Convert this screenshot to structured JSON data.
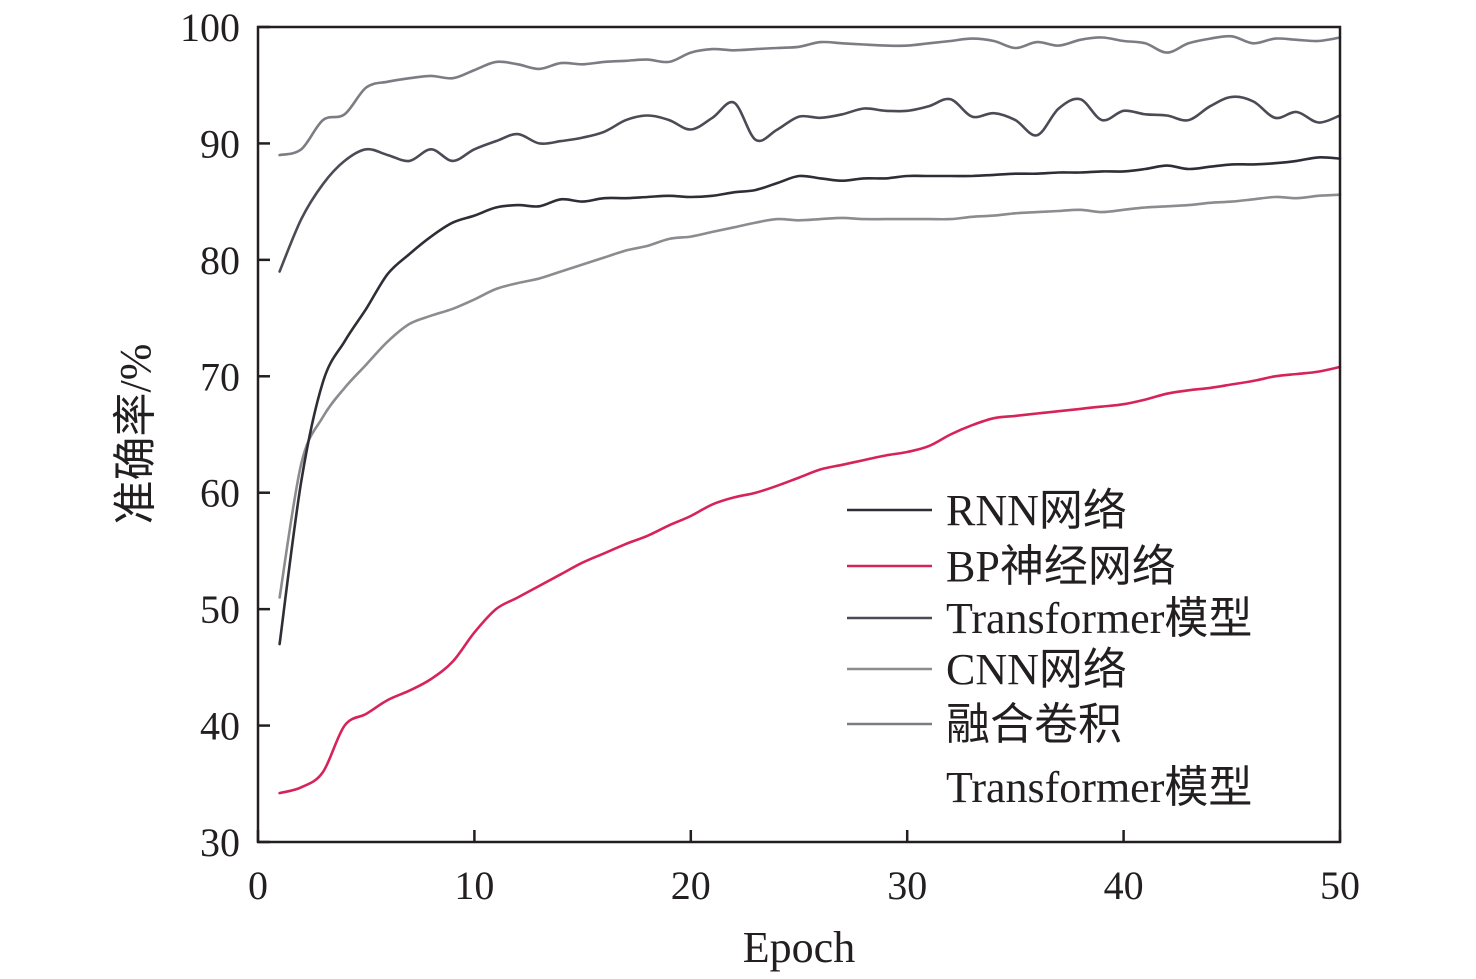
{
  "chart_data": {
    "type": "line",
    "xlabel": "Epoch",
    "ylabel": "准确率/%",
    "xlim": [
      0,
      50
    ],
    "ylim": [
      30,
      100
    ],
    "xticks": [
      0,
      10,
      20,
      30,
      40,
      50
    ],
    "yticks": [
      30,
      40,
      50,
      60,
      70,
      80,
      90,
      100
    ],
    "grid": false,
    "legend_position": "bottom-right",
    "x": [
      1,
      2,
      3,
      4,
      5,
      6,
      7,
      8,
      9,
      10,
      11,
      12,
      13,
      14,
      15,
      16,
      17,
      18,
      19,
      20,
      21,
      22,
      23,
      24,
      25,
      26,
      27,
      28,
      29,
      30,
      31,
      32,
      33,
      34,
      35,
      36,
      37,
      38,
      39,
      40,
      41,
      42,
      43,
      44,
      45,
      46,
      47,
      48,
      49,
      50
    ],
    "series": [
      {
        "name": "RNN网络",
        "color": "#2e2e36",
        "values": [
          47.0,
          61.0,
          69.5,
          73.0,
          75.8,
          78.8,
          80.5,
          82.0,
          83.2,
          83.8,
          84.5,
          84.7,
          84.6,
          85.2,
          85.0,
          85.3,
          85.3,
          85.4,
          85.5,
          85.4,
          85.5,
          85.8,
          86.0,
          86.6,
          87.2,
          87.0,
          86.8,
          87.0,
          87.0,
          87.2,
          87.2,
          87.2,
          87.2,
          87.3,
          87.4,
          87.4,
          87.5,
          87.5,
          87.6,
          87.6,
          87.8,
          88.1,
          87.8,
          88.0,
          88.2,
          88.2,
          88.3,
          88.5,
          88.8,
          88.7
        ]
      },
      {
        "name": "BP神经网络",
        "color": "#d6245a",
        "values": [
          34.2,
          34.7,
          36.0,
          40.0,
          41.0,
          42.2,
          43.0,
          44.0,
          45.5,
          48.0,
          50.0,
          51.0,
          52.0,
          53.0,
          54.0,
          54.8,
          55.6,
          56.3,
          57.2,
          58.0,
          59.0,
          59.6,
          60.0,
          60.6,
          61.3,
          62.0,
          62.4,
          62.8,
          63.2,
          63.5,
          64.0,
          65.0,
          65.8,
          66.4,
          66.6,
          66.8,
          67.0,
          67.2,
          67.4,
          67.6,
          68.0,
          68.5,
          68.8,
          69.0,
          69.3,
          69.6,
          70.0,
          70.2,
          70.4,
          70.8
        ]
      },
      {
        "name": "Transformer模型",
        "color": "#4b4b55",
        "values": [
          79.0,
          83.5,
          86.5,
          88.5,
          89.5,
          89.0,
          88.5,
          89.5,
          88.5,
          89.5,
          90.2,
          90.8,
          90.0,
          90.2,
          90.5,
          91.0,
          92.0,
          92.4,
          92.0,
          91.2,
          92.2,
          93.5,
          90.3,
          91.2,
          92.3,
          92.2,
          92.5,
          93.0,
          92.8,
          92.8,
          93.2,
          93.8,
          92.3,
          92.6,
          92.0,
          90.7,
          93.0,
          93.8,
          92.0,
          92.8,
          92.5,
          92.4,
          92.0,
          93.2,
          94.0,
          93.6,
          92.2,
          92.7,
          91.8,
          92.4
        ]
      },
      {
        "name": "CNN网络",
        "color": "#8c8c90",
        "values": [
          51.0,
          62.5,
          66.5,
          69.0,
          71.0,
          73.0,
          74.5,
          75.2,
          75.8,
          76.6,
          77.5,
          78.0,
          78.4,
          79.0,
          79.6,
          80.2,
          80.8,
          81.2,
          81.8,
          82.0,
          82.4,
          82.8,
          83.2,
          83.5,
          83.4,
          83.5,
          83.6,
          83.5,
          83.5,
          83.5,
          83.5,
          83.5,
          83.7,
          83.8,
          84.0,
          84.1,
          84.2,
          84.3,
          84.1,
          84.3,
          84.5,
          84.6,
          84.7,
          84.9,
          85.0,
          85.2,
          85.4,
          85.3,
          85.5,
          85.6
        ]
      },
      {
        "name": "融合卷积Transformer模型",
        "legend_lines": [
          "融合卷积",
          "Transformer模型"
        ],
        "color": "#7c7c82",
        "values": [
          89.0,
          89.5,
          92.0,
          92.5,
          94.8,
          95.3,
          95.6,
          95.8,
          95.6,
          96.3,
          97.0,
          96.8,
          96.4,
          96.9,
          96.8,
          97.0,
          97.1,
          97.2,
          97.0,
          97.8,
          98.1,
          98.0,
          98.1,
          98.2,
          98.3,
          98.7,
          98.6,
          98.5,
          98.4,
          98.4,
          98.6,
          98.8,
          99.0,
          98.8,
          98.2,
          98.7,
          98.4,
          98.9,
          99.1,
          98.8,
          98.6,
          97.8,
          98.6,
          99.0,
          99.2,
          98.6,
          99.0,
          98.9,
          98.8,
          99.1
        ]
      }
    ]
  }
}
